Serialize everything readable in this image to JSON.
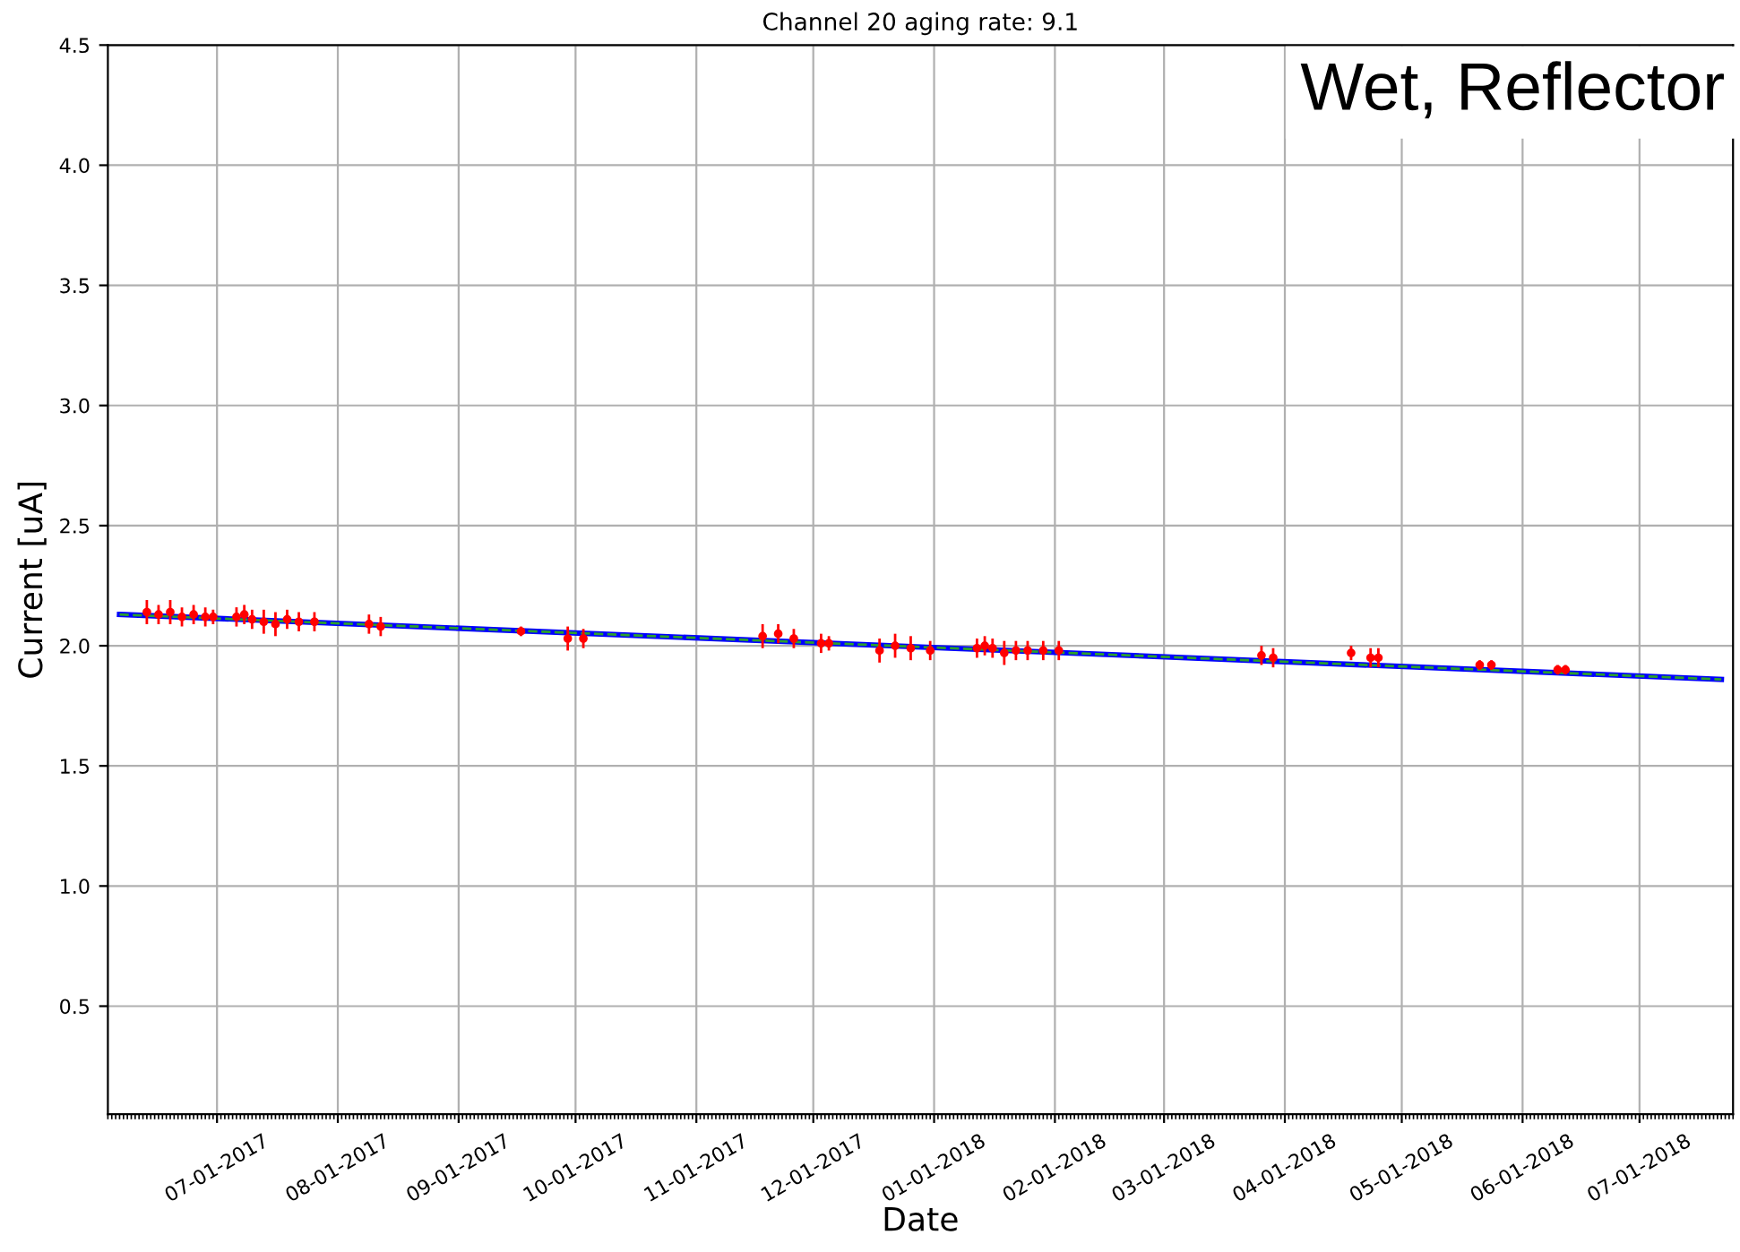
{
  "chart_data": {
    "type": "scatter",
    "title": "Channel 20 aging rate: 9.1",
    "xlabel": "Date",
    "ylabel": "Current [uA]",
    "annotations": [
      "Wet, Reflector"
    ],
    "series": [
      {
        "color": "#ff0000",
        "marker": "circle",
        "x": [
          "2017-06-13",
          "2017-06-16",
          "2017-06-19",
          "2017-06-22",
          "2017-06-25",
          "2017-06-28",
          "2017-06-30",
          "2017-07-06",
          "2017-07-08",
          "2017-07-10",
          "2017-07-13",
          "2017-07-16",
          "2017-07-19",
          "2017-07-22",
          "2017-07-26",
          "2017-08-09",
          "2017-08-12",
          "2017-09-17",
          "2017-09-29",
          "2017-10-03",
          "2017-11-18",
          "2017-11-22",
          "2017-11-26",
          "2017-12-03",
          "2017-12-05",
          "2017-12-18",
          "2017-12-22",
          "2017-12-26",
          "2017-12-31",
          "2018-01-12",
          "2018-01-14",
          "2018-01-16",
          "2018-01-19",
          "2018-01-22",
          "2018-01-25",
          "2018-01-29",
          "2018-02-02",
          "2018-03-26",
          "2018-03-29",
          "2018-04-18",
          "2018-04-23",
          "2018-04-25",
          "2018-05-21",
          "2018-05-24",
          "2018-06-10",
          "2018-06-12"
        ],
        "values": [
          2.14,
          2.13,
          2.14,
          2.12,
          2.13,
          2.12,
          2.12,
          2.12,
          2.13,
          2.11,
          2.1,
          2.09,
          2.11,
          2.1,
          2.1,
          2.09,
          2.08,
          2.06,
          2.03,
          2.03,
          2.04,
          2.05,
          2.03,
          2.01,
          2.01,
          1.98,
          2.0,
          1.99,
          1.98,
          1.99,
          2.0,
          1.99,
          1.97,
          1.98,
          1.98,
          1.98,
          1.98,
          1.96,
          1.95,
          1.97,
          1.95,
          1.95,
          1.92,
          1.92,
          1.9,
          1.9
        ],
        "errors": [
          0.05,
          0.04,
          0.05,
          0.04,
          0.04,
          0.04,
          0.03,
          0.04,
          0.04,
          0.04,
          0.05,
          0.05,
          0.04,
          0.04,
          0.04,
          0.04,
          0.04,
          0.02,
          0.05,
          0.04,
          0.05,
          0.04,
          0.04,
          0.04,
          0.03,
          0.05,
          0.05,
          0.05,
          0.04,
          0.04,
          0.04,
          0.04,
          0.05,
          0.04,
          0.04,
          0.04,
          0.04,
          0.04,
          0.04,
          0.03,
          0.04,
          0.04,
          0.02,
          0.02,
          0.02,
          0.02
        ]
      },
      {
        "type": "line",
        "color": "#0000ff",
        "line_style": "solid",
        "x": [
          "2017-06-06",
          "2018-07-22"
        ],
        "values": [
          2.13,
          1.86
        ]
      },
      {
        "type": "line",
        "color": "#2ca02c",
        "line_style": "dashed",
        "x": [
          "2017-06-06",
          "2018-07-22"
        ],
        "values": [
          2.13,
          1.86
        ]
      }
    ],
    "xlim": [
      "2017-06-03",
      "2018-07-25"
    ],
    "xticks": [
      {
        "value": "2017-07-01",
        "label": "07-01-2017"
      },
      {
        "value": "2017-08-01",
        "label": "08-01-2017"
      },
      {
        "value": "2017-09-01",
        "label": "09-01-2017"
      },
      {
        "value": "2017-10-01",
        "label": "10-01-2017"
      },
      {
        "value": "2017-11-01",
        "label": "11-01-2017"
      },
      {
        "value": "2017-12-01",
        "label": "12-01-2017"
      },
      {
        "value": "2018-01-01",
        "label": "01-01-2018"
      },
      {
        "value": "2018-02-01",
        "label": "02-01-2018"
      },
      {
        "value": "2018-03-01",
        "label": "03-01-2018"
      },
      {
        "value": "2018-04-01",
        "label": "04-01-2018"
      },
      {
        "value": "2018-05-01",
        "label": "05-01-2018"
      },
      {
        "value": "2018-06-01",
        "label": "06-01-2018"
      },
      {
        "value": "2018-07-01",
        "label": "07-01-2018"
      }
    ],
    "ylim": [
      0.05,
      4.5
    ],
    "yticks": [
      {
        "value": 0.5,
        "label": "0.5"
      },
      {
        "value": 1.0,
        "label": "1.0"
      },
      {
        "value": 1.5,
        "label": "1.5"
      },
      {
        "value": 2.0,
        "label": "2.0"
      },
      {
        "value": 2.5,
        "label": "2.5"
      },
      {
        "value": 3.0,
        "label": "3.0"
      },
      {
        "value": 3.5,
        "label": "3.5"
      },
      {
        "value": 4.0,
        "label": "4.0"
      },
      {
        "value": 4.5,
        "label": "4.5"
      }
    ],
    "grid": true,
    "legend": false
  }
}
